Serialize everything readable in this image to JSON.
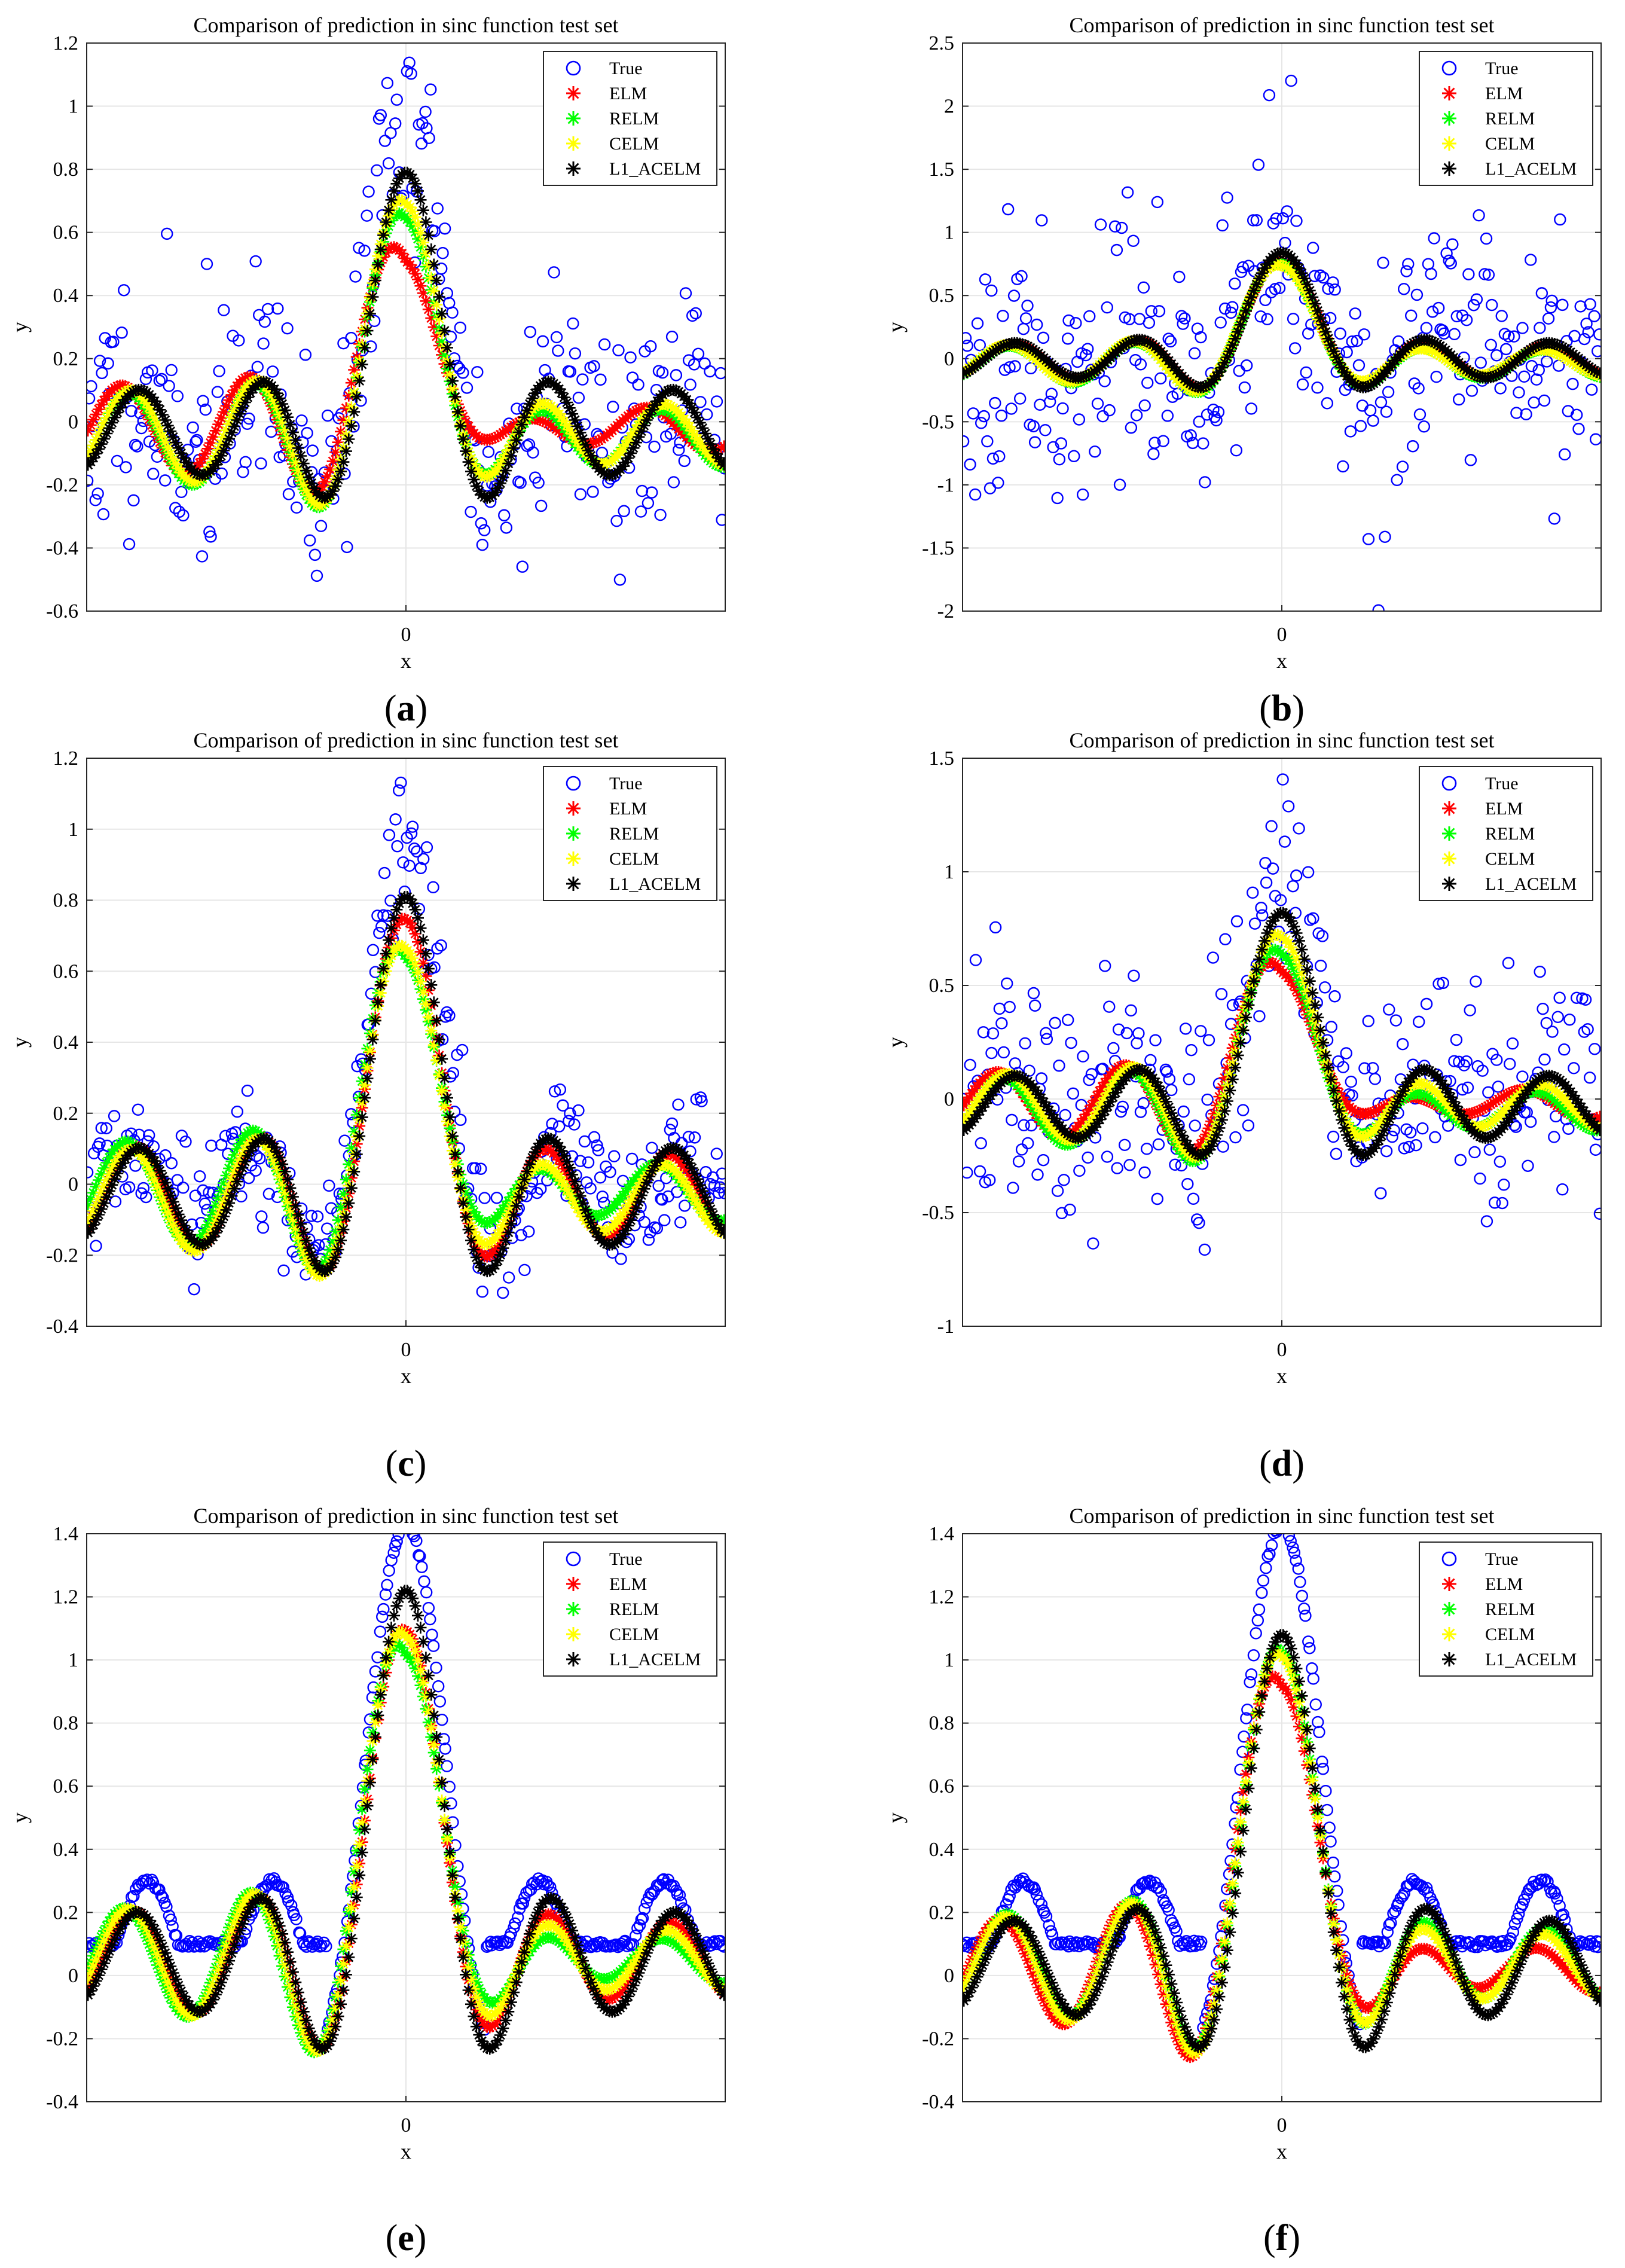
{
  "figure": {
    "series_names": [
      "True",
      "ELM",
      "RELM",
      "CELM",
      "L1_ACELM"
    ],
    "colors": {
      "True": "#0000ff",
      "ELM": "#ff0000",
      "RELM": "#00ff00",
      "CELM": "#ffff00",
      "L1_ACELM": "#000000"
    }
  },
  "chart_data": [
    {
      "id": "a",
      "type": "scatter",
      "title": "Comparison of prediction in sinc function test set",
      "xlabel": "x",
      "ylabel": "y",
      "caption_letter": "a",
      "xlim": [
        -10,
        10
      ],
      "ylim": [
        -0.6,
        1.2
      ],
      "yticks": [
        -0.6,
        -0.4,
        -0.2,
        0,
        0.2,
        0.4,
        0.6,
        0.8,
        1,
        1.2
      ],
      "ytick_labels": [
        "-0.6",
        "-0.4",
        "-0.2",
        "0",
        "0.2",
        "0.4",
        "0.6",
        "0.8",
        "1",
        "1.2"
      ],
      "xticks": [
        0
      ],
      "xtick_labels": [
        "0"
      ],
      "legend": [
        "True",
        "ELM",
        "RELM",
        "CELM",
        "L1_ACELM"
      ],
      "legend_position": "top-right",
      "noise_level": 0.2,
      "seed": 11,
      "pred_params": {
        "ELM": {
          "amp": 0.5,
          "shift": 0.6,
          "offset": -0.02
        },
        "RELM": {
          "amp": 0.62,
          "shift": 0.35,
          "offset": -0.05
        },
        "CELM": {
          "amp": 0.65,
          "shift": 0.3,
          "offset": -0.04
        },
        "L1_ACELM": {
          "amp": 0.72,
          "shift": 0.0,
          "offset": -0.03
        }
      }
    },
    {
      "id": "b",
      "type": "scatter",
      "title": "Comparison of prediction in sinc function test set",
      "xlabel": "x",
      "ylabel": "y",
      "caption_letter": "b",
      "xlim": [
        -10,
        10
      ],
      "ylim": [
        -2,
        2.5
      ],
      "yticks": [
        -2,
        -1.5,
        -1,
        -0.5,
        0,
        0.5,
        1,
        1.5,
        2,
        2.5
      ],
      "ytick_labels": [
        "-2",
        "-1.5",
        "-1",
        "-0.5",
        "0",
        "0.5",
        "1",
        "1.5",
        "2",
        "2.5"
      ],
      "xticks": [
        0
      ],
      "xtick_labels": [
        "0"
      ],
      "legend": [
        "True",
        "ELM",
        "RELM",
        "CELM",
        "L1_ACELM"
      ],
      "legend_position": "top-right",
      "noise_level": 0.55,
      "seed": 23,
      "pred_params": {
        "ELM": {
          "amp": 0.7,
          "shift": 0.1,
          "offset": -0.02
        },
        "RELM": {
          "amp": 0.7,
          "shift": 0.2,
          "offset": -0.04
        },
        "CELM": {
          "amp": 0.68,
          "shift": 0.25,
          "offset": -0.03
        },
        "L1_ACELM": {
          "amp": 0.75,
          "shift": 0.0,
          "offset": -0.01
        }
      }
    },
    {
      "id": "c",
      "type": "scatter",
      "title": "Comparison of prediction in sinc function test set",
      "xlabel": "x",
      "ylabel": "y",
      "caption_letter": "c",
      "xlim": [
        -10,
        10
      ],
      "ylim": [
        -0.4,
        1.2
      ],
      "yticks": [
        -0.4,
        -0.2,
        0,
        0.2,
        0.4,
        0.6,
        0.8,
        1,
        1.2
      ],
      "ytick_labels": [
        "-0.4",
        "-0.2",
        "0",
        "0.2",
        "0.4",
        "0.6",
        "0.8",
        "1",
        "1.2"
      ],
      "xticks": [
        0
      ],
      "xtick_labels": [
        "0"
      ],
      "legend": [
        "True",
        "ELM",
        "RELM",
        "CELM",
        "L1_ACELM"
      ],
      "legend_position": "top-right",
      "noise_level": 0.1,
      "seed": 37,
      "pred_params": {
        "ELM": {
          "amp": 0.68,
          "shift": 0.15,
          "offset": -0.03
        },
        "RELM": {
          "amp": 0.6,
          "shift": 0.45,
          "offset": -0.02
        },
        "CELM": {
          "amp": 0.62,
          "shift": 0.3,
          "offset": -0.04
        },
        "L1_ACELM": {
          "amp": 0.74,
          "shift": 0.0,
          "offset": -0.03
        }
      }
    },
    {
      "id": "d",
      "type": "scatter",
      "title": "Comparison of prediction in sinc function test set",
      "xlabel": "x",
      "ylabel": "y",
      "caption_letter": "d",
      "xlim": [
        -10,
        10
      ],
      "ylim": [
        -1,
        1.5
      ],
      "yticks": [
        -1,
        -0.5,
        0,
        0.5,
        1,
        1.5
      ],
      "ytick_labels": [
        "-1",
        "-0.5",
        "0",
        "0.5",
        "1",
        "1.5"
      ],
      "xticks": [
        0
      ],
      "xtick_labels": [
        "0"
      ],
      "legend": [
        "True",
        "ELM",
        "RELM",
        "CELM",
        "L1_ACELM"
      ],
      "legend_position": "top-right",
      "noise_level": 0.3,
      "seed": 41,
      "pred_params": {
        "ELM": {
          "amp": 0.55,
          "shift": 0.6,
          "offset": -0.02
        },
        "RELM": {
          "amp": 0.62,
          "shift": 0.4,
          "offset": -0.05
        },
        "CELM": {
          "amp": 0.66,
          "shift": 0.3,
          "offset": -0.03
        },
        "L1_ACELM": {
          "amp": 0.75,
          "shift": 0.0,
          "offset": -0.03
        }
      }
    },
    {
      "id": "e",
      "type": "scatter",
      "title": "Comparison of prediction in sinc function test set",
      "xlabel": "x",
      "ylabel": "y",
      "caption_letter": "e",
      "xlim": [
        -10,
        10
      ],
      "ylim": [
        -0.4,
        1.4
      ],
      "yticks": [
        -0.4,
        -0.2,
        0,
        0.2,
        0.4,
        0.6,
        0.8,
        1,
        1.2,
        1.4
      ],
      "ytick_labels": [
        "-0.4",
        "-0.2",
        "0",
        "0.2",
        "0.4",
        "0.6",
        "0.8",
        "1",
        "1.2",
        "1.4"
      ],
      "xticks": [
        0
      ],
      "xtick_labels": [
        "0"
      ],
      "legend": [
        "True",
        "ELM",
        "RELM",
        "CELM",
        "L1_ACELM"
      ],
      "legend_position": "top-right",
      "noise_level": 0.0,
      "seed": 53,
      "true_style": "shifted-sinc",
      "pred_params": {
        "ELM": {
          "amp": 0.95,
          "shift": 0.2,
          "offset": 0.05
        },
        "RELM": {
          "amp": 0.92,
          "shift": 0.5,
          "offset": 0.05
        },
        "CELM": {
          "amp": 0.95,
          "shift": 0.35,
          "offset": 0.05
        },
        "L1_ACELM": {
          "amp": 1.07,
          "shift": 0.0,
          "offset": 0.05
        }
      }
    },
    {
      "id": "f",
      "type": "scatter",
      "title": "Comparison of prediction in sinc function test set",
      "xlabel": "x",
      "ylabel": "y",
      "caption_letter": "f",
      "xlim": [
        -10,
        10
      ],
      "ylim": [
        -0.4,
        1.4
      ],
      "yticks": [
        -0.4,
        -0.2,
        0,
        0.2,
        0.4,
        0.6,
        0.8,
        1,
        1.2,
        1.4
      ],
      "ytick_labels": [
        "-0.4",
        "-0.2",
        "0",
        "0.2",
        "0.4",
        "0.6",
        "0.8",
        "1",
        "1.2",
        "1.4"
      ],
      "xticks": [
        0
      ],
      "xtick_labels": [
        "0"
      ],
      "legend": [
        "True",
        "ELM",
        "RELM",
        "CELM",
        "L1_ACELM"
      ],
      "legend_position": "top-right",
      "noise_level": 0.0,
      "seed": 67,
      "true_style": "shifted-sinc",
      "pred_params": {
        "ELM": {
          "amp": 0.85,
          "shift": 0.5,
          "offset": 0.02
        },
        "RELM": {
          "amp": 0.9,
          "shift": 0.25,
          "offset": 0.04
        },
        "CELM": {
          "amp": 0.9,
          "shift": 0.3,
          "offset": 0.03
        },
        "L1_ACELM": {
          "amp": 0.95,
          "shift": 0.0,
          "offset": 0.03
        }
      }
    }
  ]
}
